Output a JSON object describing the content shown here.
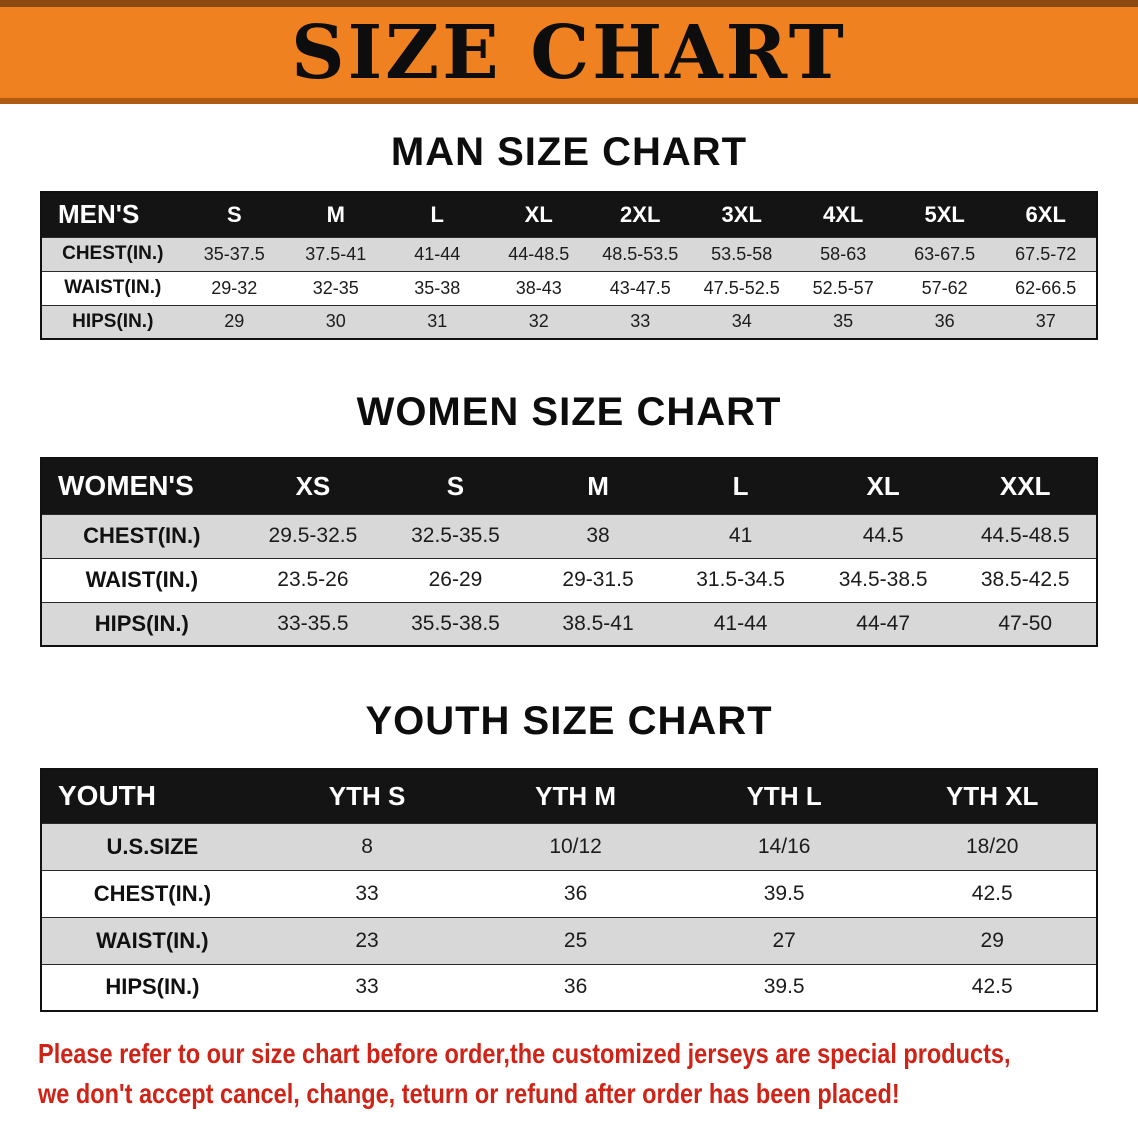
{
  "banner": {
    "title": "SIZE CHART"
  },
  "colors": {
    "banner_background": "#f08121",
    "table_header_background": "#141414",
    "row_shade": "#d8d8d8",
    "notice_red": "#d02318"
  },
  "sections": [
    {
      "id": "men",
      "heading": "MAN SIZE CHART",
      "table": {
        "header": [
          "MEN'S",
          "S",
          "M",
          "L",
          "XL",
          "2XL",
          "3XL",
          "4XL",
          "5XL",
          "6XL"
        ],
        "rows": [
          {
            "label": "CHEST(IN.)",
            "values": [
              "35-37.5",
              "37.5-41",
              "41-44",
              "44-48.5",
              "48.5-53.5",
              "53.5-58",
              "58-63",
              "63-67.5",
              "67.5-72"
            ]
          },
          {
            "label": "WAIST(IN.)",
            "values": [
              "29-32",
              "32-35",
              "35-38",
              "38-43",
              "43-47.5",
              "47.5-52.5",
              "52.5-57",
              "57-62",
              "62-66.5"
            ]
          },
          {
            "label": "HIPS(IN.)",
            "values": [
              "29",
              "30",
              "31",
              "32",
              "33",
              "34",
              "35",
              "36",
              "37"
            ]
          }
        ]
      }
    },
    {
      "id": "women",
      "heading": "WOMEN SIZE CHART",
      "table": {
        "header": [
          "WOMEN'S",
          "XS",
          "S",
          "M",
          "L",
          "XL",
          "XXL"
        ],
        "rows": [
          {
            "label": "CHEST(IN.)",
            "values": [
              "29.5-32.5",
              "32.5-35.5",
              "38",
              "41",
              "44.5",
              "44.5-48.5"
            ]
          },
          {
            "label": "WAIST(IN.)",
            "values": [
              "23.5-26",
              "26-29",
              "29-31.5",
              "31.5-34.5",
              "34.5-38.5",
              "38.5-42.5"
            ]
          },
          {
            "label": "HIPS(IN.)",
            "values": [
              "33-35.5",
              "35.5-38.5",
              "38.5-41",
              "41-44",
              "44-47",
              "47-50"
            ]
          }
        ]
      }
    },
    {
      "id": "youth",
      "heading": "YOUTH SIZE CHART",
      "table": {
        "header": [
          "YOUTH",
          "YTH S",
          "YTH M",
          "YTH L",
          "YTH XL"
        ],
        "rows": [
          {
            "label": "U.S.SIZE",
            "values": [
              "8",
              "10/12",
              "14/16",
              "18/20"
            ]
          },
          {
            "label": "CHEST(IN.)",
            "values": [
              "33",
              "36",
              "39.5",
              "42.5"
            ]
          },
          {
            "label": "WAIST(IN.)",
            "values": [
              "23",
              "25",
              "27",
              "29"
            ]
          },
          {
            "label": "HIPS(IN.)",
            "values": [
              "33",
              "36",
              "39.5",
              "42.5"
            ]
          }
        ]
      }
    }
  ],
  "footer": {
    "lines": [
      "Please refer to our size chart before order,the customized jerseys are special products,",
      "we don't accept cancel, change, teturn or refund after order has been placed!"
    ]
  }
}
